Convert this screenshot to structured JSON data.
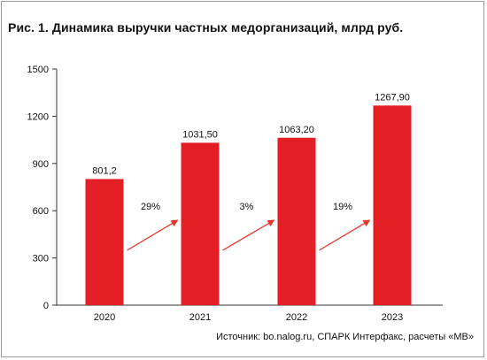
{
  "title": "Рис. 1. Динамика выручки частных медорганизаций, млрд руб.",
  "source": "Источник: bo.nalog.ru, СПАРК Интерфакс, расчеты «МВ»",
  "colors": {
    "bar": "#e31e24",
    "arrow": "#e8372a",
    "axis": "#333333"
  },
  "chart_data": {
    "type": "bar",
    "categories": [
      "2020",
      "2021",
      "2022",
      "2023"
    ],
    "values": [
      801.2,
      1031.5,
      1063.2,
      1267.9
    ],
    "value_labels": [
      "801,2",
      "1031,50",
      "1063,20",
      "1267,90"
    ],
    "ylim": [
      0,
      1500
    ],
    "yticks": [
      0,
      300,
      600,
      900,
      1200,
      1500
    ],
    "ytick_labels": [
      "0",
      "300",
      "600",
      "900",
      "1200",
      "1500"
    ],
    "growth_annotations": [
      {
        "from": "2020",
        "to": "2021",
        "label": "29%"
      },
      {
        "from": "2021",
        "to": "2022",
        "label": "3%"
      },
      {
        "from": "2022",
        "to": "2023",
        "label": "19%"
      }
    ],
    "grid": false,
    "legend": "none"
  }
}
